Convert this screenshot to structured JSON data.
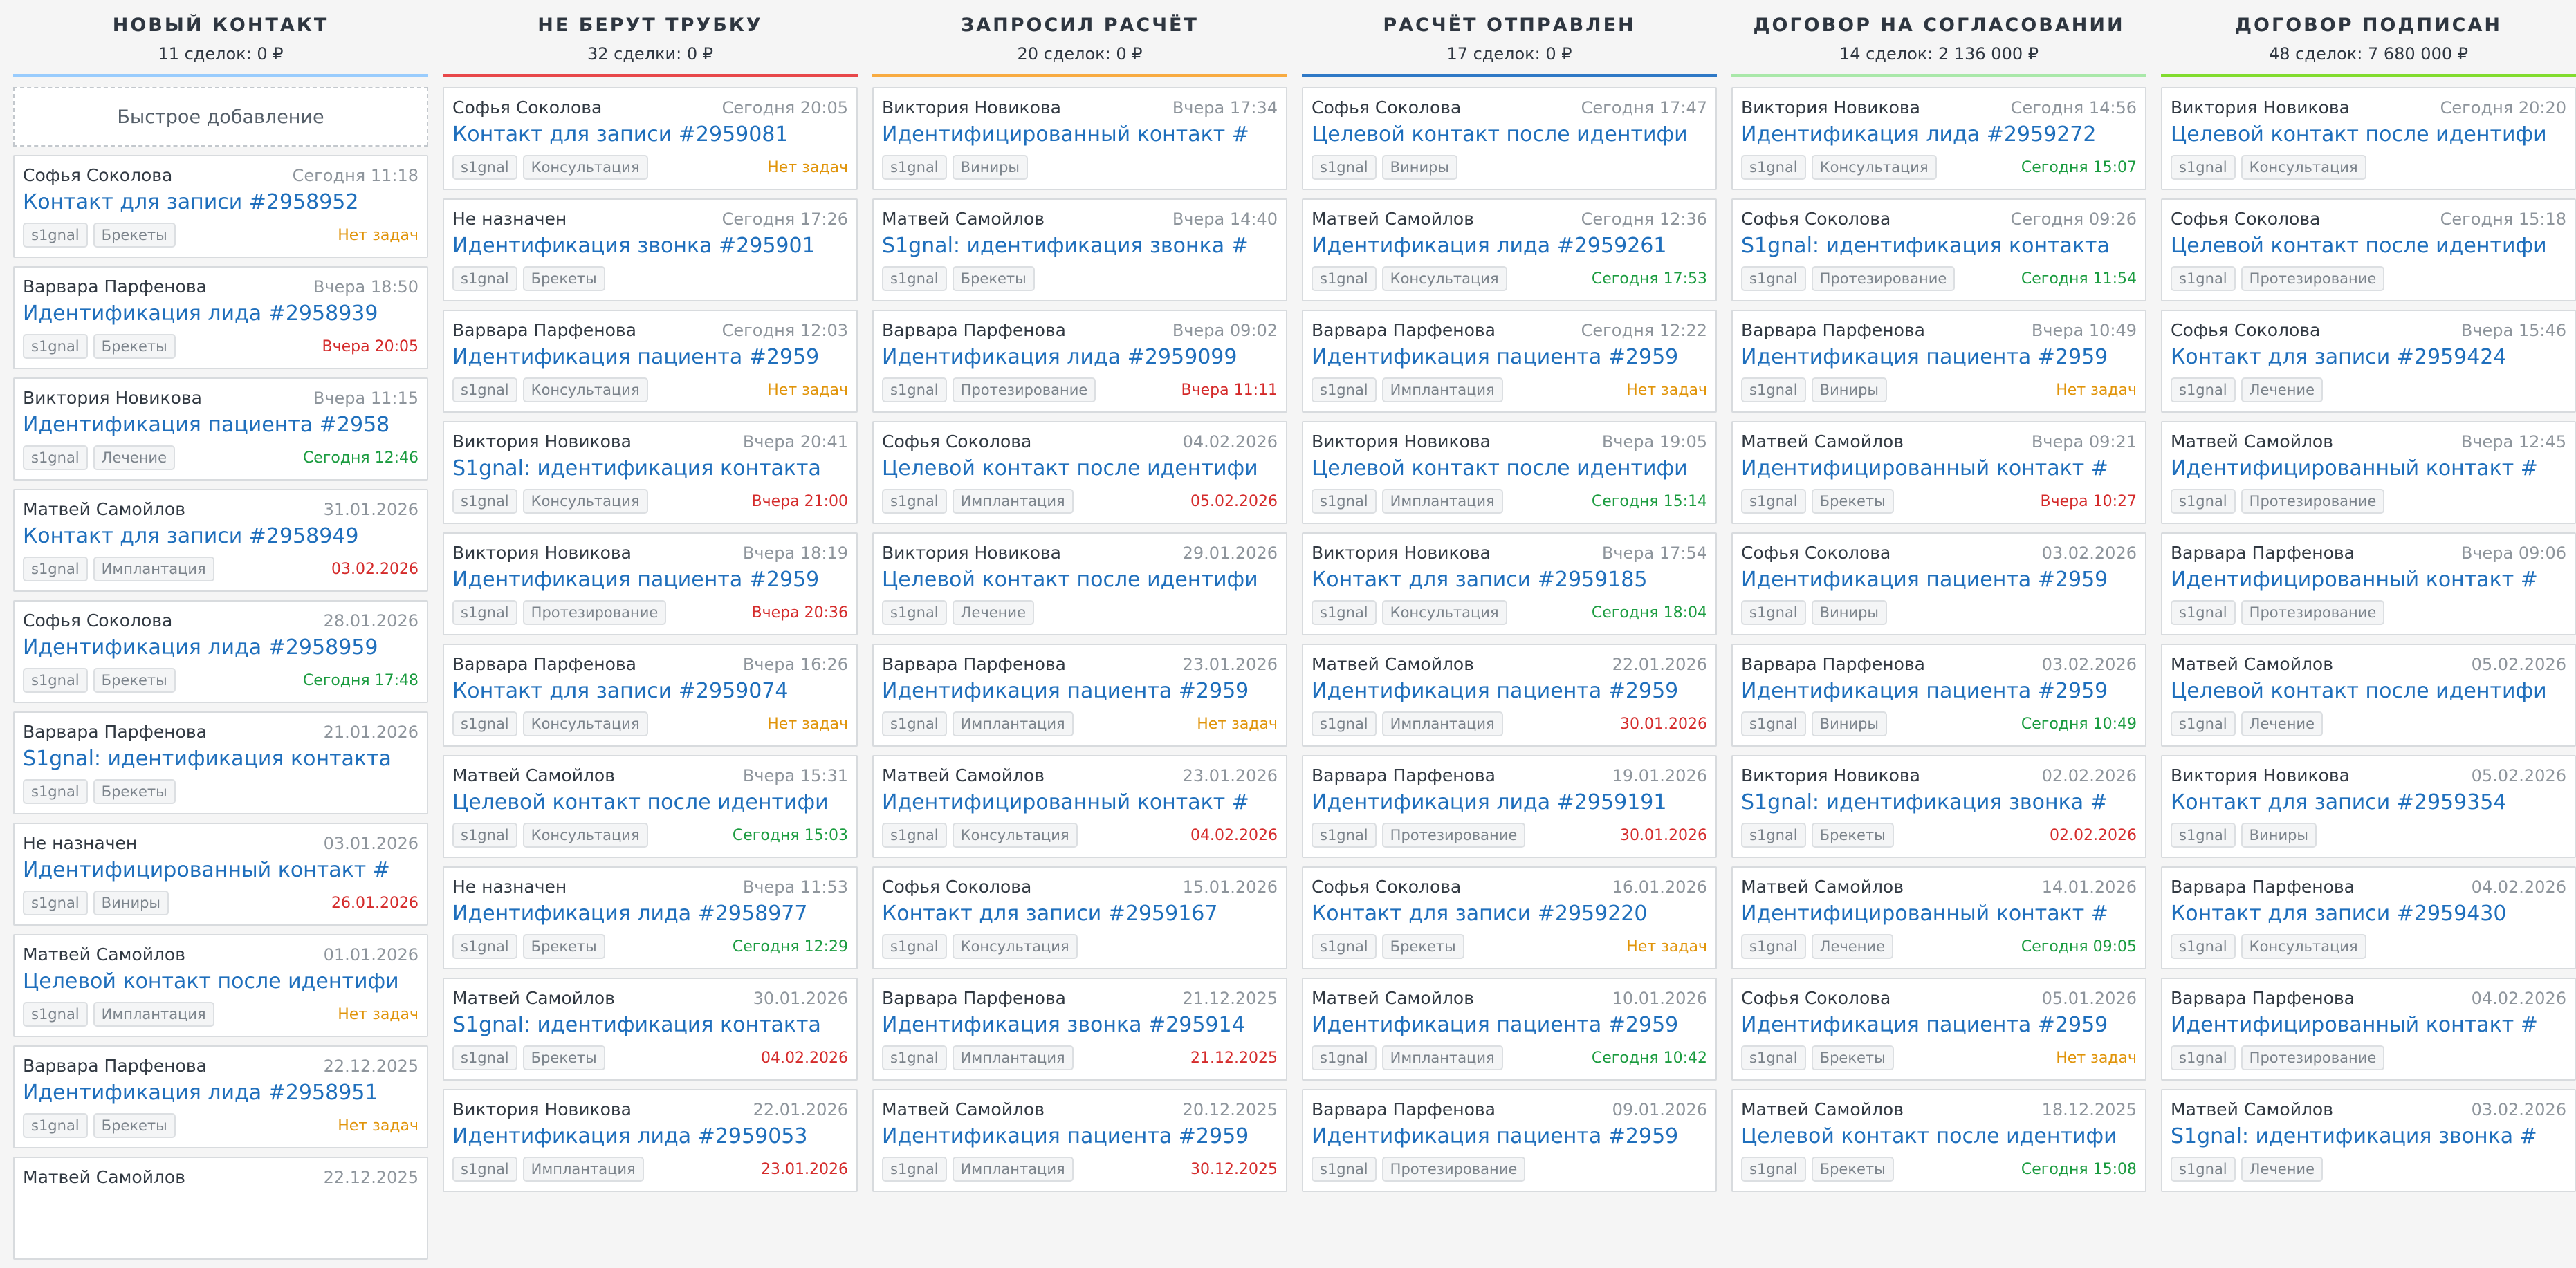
{
  "colors": {
    "task_green": "#1a9b3f",
    "task_red": "#d42a2a",
    "task_orange": "#e0940a",
    "link_blue": "#1f6fbc"
  },
  "quick_add_label": "Быстрое добавление",
  "columns": [
    {
      "title": "Новый контакт",
      "summary": "11 сделок: 0 ₽",
      "accent": "#99ccfd",
      "cards": [
        {
          "user": "Софья Соколова",
          "date": "Сегодня 11:18",
          "title": "Контакт для записи #2958952",
          "tags": [
            "s1gnal",
            "Брекеты"
          ],
          "task": "Нет задач",
          "task_status": "none"
        },
        {
          "user": "Варвара Парфенова",
          "date": "Вчера 18:50",
          "title": "Идентификация лида #2958939",
          "tags": [
            "s1gnal",
            "Брекеты"
          ],
          "task": "Вчера 20:05",
          "task_status": "overdue"
        },
        {
          "user": "Виктория Новикова",
          "date": "Вчера 11:15",
          "title": "Идентификация пациента #2958",
          "tags": [
            "s1gnal",
            "Лечение"
          ],
          "task": "Сегодня 12:46",
          "task_status": "ok"
        },
        {
          "user": "Матвей Самойлов",
          "date": "31.01.2026",
          "title": "Контакт для записи #2958949",
          "tags": [
            "s1gnal",
            "Имплантация"
          ],
          "task": "03.02.2026",
          "task_status": "overdue"
        },
        {
          "user": "Софья Соколова",
          "date": "28.01.2026",
          "title": "Идентификация лида #2958959",
          "tags": [
            "s1gnal",
            "Брекеты"
          ],
          "task": "Сегодня 17:48",
          "task_status": "ok"
        },
        {
          "user": "Варвара Парфенова",
          "date": "21.01.2026",
          "title": "S1gnal: идентификация контакта",
          "tags": [
            "s1gnal",
            "Брекеты"
          ],
          "task": "",
          "task_status": "none"
        },
        {
          "user": "Не назначен",
          "date": "03.01.2026",
          "title": "Идентифицированный контакт #",
          "tags": [
            "s1gnal",
            "Виниры"
          ],
          "task": "26.01.2026",
          "task_status": "overdue"
        },
        {
          "user": "Матвей Самойлов",
          "date": "01.01.2026",
          "title": "Целевой контакт после идентифи",
          "tags": [
            "s1gnal",
            "Имплантация"
          ],
          "task": "Нет задач",
          "task_status": "none"
        },
        {
          "user": "Варвара Парфенова",
          "date": "22.12.2025",
          "title": "Идентификация лида #2958951",
          "tags": [
            "s1gnal",
            "Брекеты"
          ],
          "task": "Нет задач",
          "task_status": "none"
        },
        {
          "user": "Матвей Самойлов",
          "date": "22.12.2025",
          "title": "",
          "tags": [],
          "task": "",
          "task_status": "none"
        }
      ]
    },
    {
      "title": "Не берут трубку",
      "summary": "32 сделки: 0 ₽",
      "accent": "#e8474a",
      "cards": [
        {
          "user": "Софья Соколова",
          "date": "Сегодня 20:05",
          "title": "Контакт для записи #2959081",
          "tags": [
            "s1gnal",
            "Консультация"
          ],
          "task": "Нет задач",
          "task_status": "none"
        },
        {
          "user": "Не назначен",
          "date": "Сегодня 17:26",
          "title": "Идентификация звонка #295901",
          "tags": [
            "s1gnal",
            "Брекеты"
          ],
          "task": "",
          "task_status": "none"
        },
        {
          "user": "Варвара Парфенова",
          "date": "Сегодня 12:03",
          "title": "Идентификация пациента #2959",
          "tags": [
            "s1gnal",
            "Консультация"
          ],
          "task": "Нет задач",
          "task_status": "none"
        },
        {
          "user": "Виктория Новикова",
          "date": "Вчера 20:41",
          "title": "S1gnal: идентификация контакта",
          "tags": [
            "s1gnal",
            "Консультация"
          ],
          "task": "Вчера 21:00",
          "task_status": "overdue"
        },
        {
          "user": "Виктория Новикова",
          "date": "Вчера 18:19",
          "title": "Идентификация пациента #2959",
          "tags": [
            "s1gnal",
            "Протезирование"
          ],
          "task": "Вчера 20:36",
          "task_status": "overdue"
        },
        {
          "user": "Варвара Парфенова",
          "date": "Вчера 16:26",
          "title": "Контакт для записи #2959074",
          "tags": [
            "s1gnal",
            "Консультация"
          ],
          "task": "Нет задач",
          "task_status": "none"
        },
        {
          "user": "Матвей Самойлов",
          "date": "Вчера 15:31",
          "title": "Целевой контакт после идентифи",
          "tags": [
            "s1gnal",
            "Консультация"
          ],
          "task": "Сегодня 15:03",
          "task_status": "ok"
        },
        {
          "user": "Не назначен",
          "date": "Вчера 11:53",
          "title": "Идентификация лида #2958977",
          "tags": [
            "s1gnal",
            "Брекеты"
          ],
          "task": "Сегодня 12:29",
          "task_status": "ok"
        },
        {
          "user": "Матвей Самойлов",
          "date": "30.01.2026",
          "title": "S1gnal: идентификация контакта",
          "tags": [
            "s1gnal",
            "Брекеты"
          ],
          "task": "04.02.2026",
          "task_status": "overdue"
        },
        {
          "user": "Виктория Новикова",
          "date": "22.01.2026",
          "title": "Идентификация лида #2959053",
          "tags": [
            "s1gnal",
            "Имплантация"
          ],
          "task": "23.01.2026",
          "task_status": "overdue"
        }
      ]
    },
    {
      "title": "Запросил расчёт",
      "summary": "20 сделок: 0 ₽",
      "accent": "#f8ab41",
      "cards": [
        {
          "user": "Виктория Новикова",
          "date": "Вчера 17:34",
          "title": "Идентифицированный контакт #",
          "tags": [
            "s1gnal",
            "Виниры"
          ],
          "task": "",
          "task_status": "none"
        },
        {
          "user": "Матвей Самойлов",
          "date": "Вчера 14:40",
          "title": "S1gnal: идентификация звонка #",
          "tags": [
            "s1gnal",
            "Брекеты"
          ],
          "task": "",
          "task_status": "none"
        },
        {
          "user": "Варвара Парфенова",
          "date": "Вчера 09:02",
          "title": "Идентификация лида #2959099",
          "tags": [
            "s1gnal",
            "Протезирование"
          ],
          "task": "Вчера 11:11",
          "task_status": "overdue"
        },
        {
          "user": "Софья Соколова",
          "date": "04.02.2026",
          "title": "Целевой контакт после идентифи",
          "tags": [
            "s1gnal",
            "Имплантация"
          ],
          "task": "05.02.2026",
          "task_status": "overdue"
        },
        {
          "user": "Виктория Новикова",
          "date": "29.01.2026",
          "title": "Целевой контакт после идентифи",
          "tags": [
            "s1gnal",
            "Лечение"
          ],
          "task": "",
          "task_status": "none"
        },
        {
          "user": "Варвара Парфенова",
          "date": "23.01.2026",
          "title": "Идентификация пациента #2959",
          "tags": [
            "s1gnal",
            "Имплантация"
          ],
          "task": "Нет задач",
          "task_status": "none"
        },
        {
          "user": "Матвей Самойлов",
          "date": "23.01.2026",
          "title": "Идентифицированный контакт #",
          "tags": [
            "s1gnal",
            "Консультация"
          ],
          "task": "04.02.2026",
          "task_status": "overdue"
        },
        {
          "user": "Софья Соколова",
          "date": "15.01.2026",
          "title": "Контакт для записи #2959167",
          "tags": [
            "s1gnal",
            "Консультация"
          ],
          "task": "",
          "task_status": "none"
        },
        {
          "user": "Варвара Парфенова",
          "date": "21.12.2025",
          "title": "Идентификация звонка #295914",
          "tags": [
            "s1gnal",
            "Имплантация"
          ],
          "task": "21.12.2025",
          "task_status": "overdue"
        },
        {
          "user": "Матвей Самойлов",
          "date": "20.12.2025",
          "title": "Идентификация пациента #2959",
          "tags": [
            "s1gnal",
            "Имплантация"
          ],
          "task": "30.12.2025",
          "task_status": "overdue"
        }
      ]
    },
    {
      "title": "Расчёт отправлен",
      "summary": "17 сделок: 0 ₽",
      "accent": "#2f79c6",
      "cards": [
        {
          "user": "Софья Соколова",
          "date": "Сегодня 17:47",
          "title": "Целевой контакт после идентифи",
          "tags": [
            "s1gnal",
            "Виниры"
          ],
          "task": "",
          "task_status": "none"
        },
        {
          "user": "Матвей Самойлов",
          "date": "Сегодня 12:36",
          "title": "Идентификация лида #2959261",
          "tags": [
            "s1gnal",
            "Консультация"
          ],
          "task": "Сегодня 17:53",
          "task_status": "ok"
        },
        {
          "user": "Варвара Парфенова",
          "date": "Сегодня 12:22",
          "title": "Идентификация пациента #2959",
          "tags": [
            "s1gnal",
            "Имплантация"
          ],
          "task": "Нет задач",
          "task_status": "none"
        },
        {
          "user": "Виктория Новикова",
          "date": "Вчера 19:05",
          "title": "Целевой контакт после идентифи",
          "tags": [
            "s1gnal",
            "Имплантация"
          ],
          "task": "Сегодня 15:14",
          "task_status": "ok"
        },
        {
          "user": "Виктория Новикова",
          "date": "Вчера 17:54",
          "title": "Контакт для записи #2959185",
          "tags": [
            "s1gnal",
            "Консультация"
          ],
          "task": "Сегодня 18:04",
          "task_status": "ok"
        },
        {
          "user": "Матвей Самойлов",
          "date": "22.01.2026",
          "title": "Идентификация пациента #2959",
          "tags": [
            "s1gnal",
            "Имплантация"
          ],
          "task": "30.01.2026",
          "task_status": "overdue"
        },
        {
          "user": "Варвара Парфенова",
          "date": "19.01.2026",
          "title": "Идентификация лида #2959191",
          "tags": [
            "s1gnal",
            "Протезирование"
          ],
          "task": "30.01.2026",
          "task_status": "overdue"
        },
        {
          "user": "Софья Соколова",
          "date": "16.01.2026",
          "title": "Контакт для записи #2959220",
          "tags": [
            "s1gnal",
            "Брекеты"
          ],
          "task": "Нет задач",
          "task_status": "none"
        },
        {
          "user": "Матвей Самойлов",
          "date": "10.01.2026",
          "title": "Идентификация пациента #2959",
          "tags": [
            "s1gnal",
            "Имплантация"
          ],
          "task": "Сегодня 10:42",
          "task_status": "ok"
        },
        {
          "user": "Варвара Парфенова",
          "date": "09.01.2026",
          "title": "Идентификация пациента #2959",
          "tags": [
            "s1gnal",
            "Протезирование"
          ],
          "task": "",
          "task_status": "none"
        }
      ]
    },
    {
      "title": "Договор на согласовании",
      "summary": "14 сделок: 2 136 000 ₽",
      "accent": "#a9e8a9",
      "cards": [
        {
          "user": "Виктория Новикова",
          "date": "Сегодня 14:56",
          "title": "Идентификация лида #2959272",
          "tags": [
            "s1gnal",
            "Консультация"
          ],
          "task": "Сегодня 15:07",
          "task_status": "ok"
        },
        {
          "user": "Софья Соколова",
          "date": "Сегодня 09:26",
          "title": "S1gnal: идентификация контакта",
          "tags": [
            "s1gnal",
            "Протезирование"
          ],
          "task": "Сегодня 11:54",
          "task_status": "ok"
        },
        {
          "user": "Варвара Парфенова",
          "date": "Вчера 10:49",
          "title": "Идентификация пациента #2959",
          "tags": [
            "s1gnal",
            "Виниры"
          ],
          "task": "Нет задач",
          "task_status": "none"
        },
        {
          "user": "Матвей Самойлов",
          "date": "Вчера 09:21",
          "title": "Идентифицированный контакт #",
          "tags": [
            "s1gnal",
            "Брекеты"
          ],
          "task": "Вчера 10:27",
          "task_status": "overdue"
        },
        {
          "user": "Софья Соколова",
          "date": "03.02.2026",
          "title": "Идентификация пациента #2959",
          "tags": [
            "s1gnal",
            "Виниры"
          ],
          "task": "",
          "task_status": "none"
        },
        {
          "user": "Варвара Парфенова",
          "date": "03.02.2026",
          "title": "Идентификация пациента #2959",
          "tags": [
            "s1gnal",
            "Виниры"
          ],
          "task": "Сегодня 10:49",
          "task_status": "ok"
        },
        {
          "user": "Виктория Новикова",
          "date": "02.02.2026",
          "title": "S1gnal: идентификация звонка #",
          "tags": [
            "s1gnal",
            "Брекеты"
          ],
          "task": "02.02.2026",
          "task_status": "overdue"
        },
        {
          "user": "Матвей Самойлов",
          "date": "14.01.2026",
          "title": "Идентифицированный контакт #",
          "tags": [
            "s1gnal",
            "Лечение"
          ],
          "task": "Сегодня 09:05",
          "task_status": "ok"
        },
        {
          "user": "Софья Соколова",
          "date": "05.01.2026",
          "title": "Идентификация пациента #2959",
          "tags": [
            "s1gnal",
            "Брекеты"
          ],
          "task": "Нет задач",
          "task_status": "none"
        },
        {
          "user": "Матвей Самойлов",
          "date": "18.12.2025",
          "title": "Целевой контакт после идентифи",
          "tags": [
            "s1gnal",
            "Брекеты"
          ],
          "task": "Сегодня 15:08",
          "task_status": "ok"
        }
      ]
    },
    {
      "title": "Договор подписан",
      "summary": "48 сделок: 7 680 000 ₽",
      "accent": "#82dc2e",
      "cards": [
        {
          "user": "Виктория Новикова",
          "date": "Сегодня 20:20",
          "title": "Целевой контакт после идентифи",
          "tags": [
            "s1gnal",
            "Консультация"
          ],
          "task": "",
          "task_status": "none"
        },
        {
          "user": "Софья Соколова",
          "date": "Сегодня 15:18",
          "title": "Целевой контакт после идентифи",
          "tags": [
            "s1gnal",
            "Протезирование"
          ],
          "task": "",
          "task_status": "none"
        },
        {
          "user": "Софья Соколова",
          "date": "Вчера 15:46",
          "title": "Контакт для записи #2959424",
          "tags": [
            "s1gnal",
            "Лечение"
          ],
          "task": "",
          "task_status": "none"
        },
        {
          "user": "Матвей Самойлов",
          "date": "Вчера 12:45",
          "title": "Идентифицированный контакт #",
          "tags": [
            "s1gnal",
            "Протезирование"
          ],
          "task": "",
          "task_status": "none"
        },
        {
          "user": "Варвара Парфенова",
          "date": "Вчера 09:06",
          "title": "Идентифицированный контакт #",
          "tags": [
            "s1gnal",
            "Протезирование"
          ],
          "task": "",
          "task_status": "none"
        },
        {
          "user": "Матвей Самойлов",
          "date": "05.02.2026",
          "title": "Целевой контакт после идентифи",
          "tags": [
            "s1gnal",
            "Лечение"
          ],
          "task": "",
          "task_status": "none"
        },
        {
          "user": "Виктория Новикова",
          "date": "05.02.2026",
          "title": "Контакт для записи #2959354",
          "tags": [
            "s1gnal",
            "Виниры"
          ],
          "task": "",
          "task_status": "none"
        },
        {
          "user": "Варвара Парфенова",
          "date": "04.02.2026",
          "title": "Контакт для записи #2959430",
          "tags": [
            "s1gnal",
            "Консультация"
          ],
          "task": "",
          "task_status": "none"
        },
        {
          "user": "Варвара Парфенова",
          "date": "04.02.2026",
          "title": "Идентифицированный контакт #",
          "tags": [
            "s1gnal",
            "Протезирование"
          ],
          "task": "",
          "task_status": "none"
        },
        {
          "user": "Матвей Самойлов",
          "date": "03.02.2026",
          "title": "S1gnal: идентификация звонка #",
          "tags": [
            "s1gnal",
            "Лечение"
          ],
          "task": "",
          "task_status": "none"
        }
      ]
    }
  ]
}
